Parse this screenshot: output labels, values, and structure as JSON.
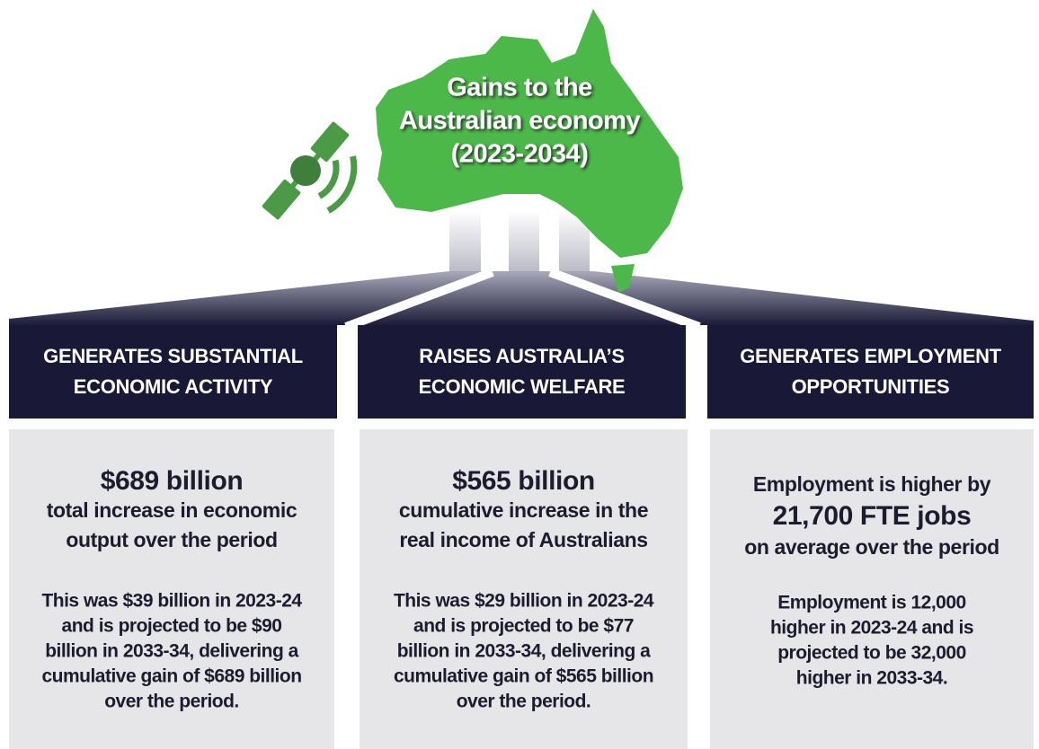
{
  "header": {
    "title": [
      "Gains to the",
      "Australian economy",
      "(2023-2034)"
    ]
  },
  "columns": [
    {
      "heading": [
        "GENERATES SUBSTANTIAL",
        "ECONOMIC ACTIVITY"
      ],
      "highlight": [
        {
          "text": "$689 billion",
          "big": true
        },
        {
          "text": "total increase in economic",
          "big": false
        },
        {
          "text": "output over the period",
          "big": false
        }
      ],
      "detail": [
        "This was $39 billion in 2023-24",
        "and is projected to be $90",
        "billion in 2033-34, delivering a",
        "cumulative gain of $689 billion",
        "over the period."
      ]
    },
    {
      "heading": [
        "RAISES AUSTRALIA’S",
        "ECONOMIC WELFARE"
      ],
      "highlight": [
        {
          "text": "$565 billion",
          "big": true
        },
        {
          "text": "cumulative increase in the",
          "big": false
        },
        {
          "text": "real income of Australians",
          "big": false
        }
      ],
      "detail": [
        "This was $29 billion in 2023-24",
        "and is projected to be $77",
        "billion in 2033-34, delivering a",
        "cumulative gain of $565 billion",
        "over the period."
      ]
    },
    {
      "heading": [
        "GENERATES EMPLOYMENT",
        "OPPORTUNITIES"
      ],
      "highlight": [
        {
          "text": "Employment is higher by",
          "big": false
        },
        {
          "text": "21,700 FTE jobs",
          "big": true
        },
        {
          "text": "on average over the period",
          "big": false
        }
      ],
      "detail": [
        "Employment is 12,000",
        "higher in 2023-24 and is",
        "projected to be 32,000",
        "higher in 2033-34."
      ]
    }
  ]
}
